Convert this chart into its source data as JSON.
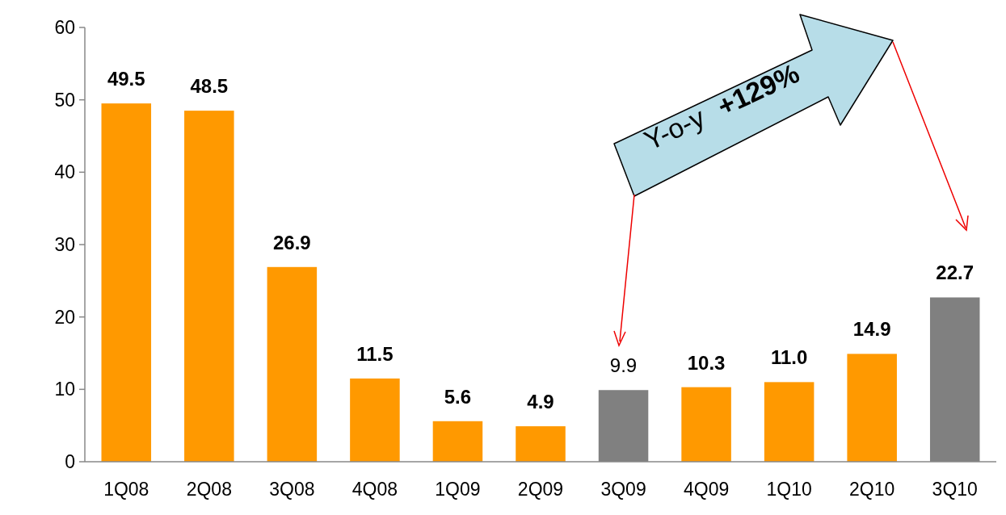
{
  "chart_data": {
    "type": "bar",
    "categories": [
      "1Q08",
      "2Q08",
      "3Q08",
      "4Q08",
      "1Q09",
      "2Q09",
      "3Q09",
      "4Q09",
      "1Q10",
      "2Q10",
      "3Q10"
    ],
    "values": [
      49.5,
      48.5,
      26.9,
      11.5,
      5.6,
      4.9,
      9.9,
      10.3,
      11.0,
      14.9,
      22.7
    ],
    "colors": [
      "#ff9900",
      "#ff9900",
      "#ff9900",
      "#ff9900",
      "#ff9900",
      "#ff9900",
      "#808080",
      "#ff9900",
      "#ff9900",
      "#ff9900",
      "#808080"
    ],
    "value_labels": [
      "49.5",
      "48.5",
      "26.9",
      "11.5",
      "5.6",
      "4.9",
      "9.9",
      "10.3",
      "11.0",
      "14.9",
      "22.7"
    ],
    "ylim": [
      0,
      60
    ],
    "yticks": [
      0,
      10,
      20,
      30,
      40,
      50,
      60
    ],
    "grid": false,
    "annotations": [
      "Y-o-y",
      "+129%"
    ]
  }
}
